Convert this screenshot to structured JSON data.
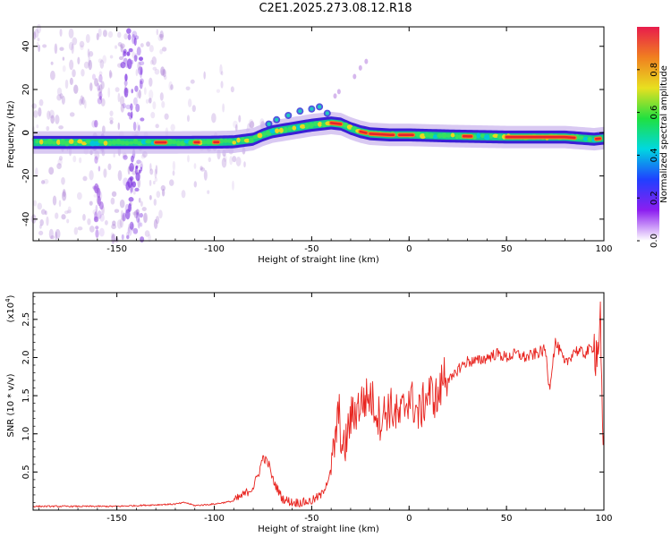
{
  "title": "C2E1.2025.273.08.12.R18",
  "colors": {
    "background": "#ffffff",
    "axis": "#000000",
    "snr_line": "#e8231e",
    "band_core": "#14cc8e",
    "band_edge": "#3a1fd6",
    "scatter": "#b28ad8",
    "hot": "#e8202c",
    "colorbar_stops": [
      "#ffffff",
      "#8c1ef0",
      "#2040ff",
      "#00d8e0",
      "#20e040",
      "#e8e020",
      "#f08020",
      "#e81c4c"
    ]
  },
  "chart_data": [
    {
      "type": "heatmap",
      "name": "spectrogram",
      "xlabel": "Height of straight line (km)",
      "ylabel": "Frequency (Hz)",
      "xlim": [
        -193,
        100
      ],
      "ylim": [
        -50,
        49
      ],
      "x_ticks": [
        -150,
        -100,
        -50,
        0,
        50,
        100
      ],
      "y_ticks": [
        -40,
        -20,
        0,
        20,
        40
      ],
      "ridge": {
        "x": [
          -193,
          -160,
          -140,
          -120,
          -100,
          -90,
          -80,
          -75,
          -70,
          -60,
          -50,
          -40,
          -35,
          -30,
          -25,
          -20,
          -10,
          0,
          20,
          50,
          80,
          95,
          100
        ],
        "y": [
          -4.5,
          -4.5,
          -4.5,
          -4.5,
          -4.4,
          -4.2,
          -3.0,
          -1.0,
          0.5,
          2.0,
          3.5,
          4.5,
          4.0,
          2.0,
          0.5,
          -0.5,
          -1.0,
          -1.0,
          -1.5,
          -2.0,
          -2.0,
          -3.0,
          -2.5
        ]
      },
      "band_halfwidth": 3,
      "colorbar": {
        "label": "Normalized spectral amplitude",
        "range": [
          0,
          1
        ],
        "ticks": [
          "0.0",
          "0.2",
          "0.4",
          "0.6",
          "0.8"
        ]
      }
    },
    {
      "type": "line",
      "name": "snr",
      "xlabel": "Height of straight line (km)",
      "ylabel": "SNR (10 * v/v)",
      "y_scale_note": "(x10",
      "y_scale_exp": "4",
      "y_scale_close": ")",
      "xlim": [
        -193,
        100
      ],
      "ylim": [
        0,
        2.85
      ],
      "x_ticks": [
        -150,
        -100,
        -50,
        0,
        50,
        100
      ],
      "y_ticks": [
        0.5,
        1.0,
        1.5,
        2.0,
        2.5
      ],
      "x": [
        -193,
        -150,
        -120,
        -115,
        -110,
        -100,
        -90,
        -85,
        -80,
        -77,
        -75,
        -72,
        -70,
        -65,
        -60,
        -55,
        -50,
        -45,
        -40,
        -38,
        -36,
        -34,
        -30,
        -25,
        -20,
        -15,
        -10,
        -5,
        0,
        5,
        10,
        15,
        18,
        22,
        25,
        30,
        35,
        40,
        45,
        50,
        55,
        60,
        65,
        70,
        72,
        75,
        78,
        80,
        85,
        90,
        95,
        97,
        98,
        99,
        100
      ],
      "y": [
        0.05,
        0.05,
        0.08,
        0.1,
        0.06,
        0.08,
        0.12,
        0.2,
        0.3,
        0.5,
        0.7,
        0.6,
        0.4,
        0.15,
        0.1,
        0.1,
        0.12,
        0.2,
        0.5,
        0.9,
        1.3,
        0.7,
        1.2,
        1.4,
        1.5,
        1.2,
        1.35,
        1.2,
        1.5,
        1.25,
        1.55,
        1.45,
        1.8,
        1.7,
        1.85,
        1.95,
        1.95,
        2.0,
        2.05,
        2.0,
        2.05,
        2.0,
        2.05,
        2.1,
        1.6,
        2.2,
        2.05,
        1.9,
        2.1,
        2.05,
        2.15,
        2.05,
        2.7,
        1.2,
        0.6
      ],
      "noise": 0.18
    }
  ]
}
